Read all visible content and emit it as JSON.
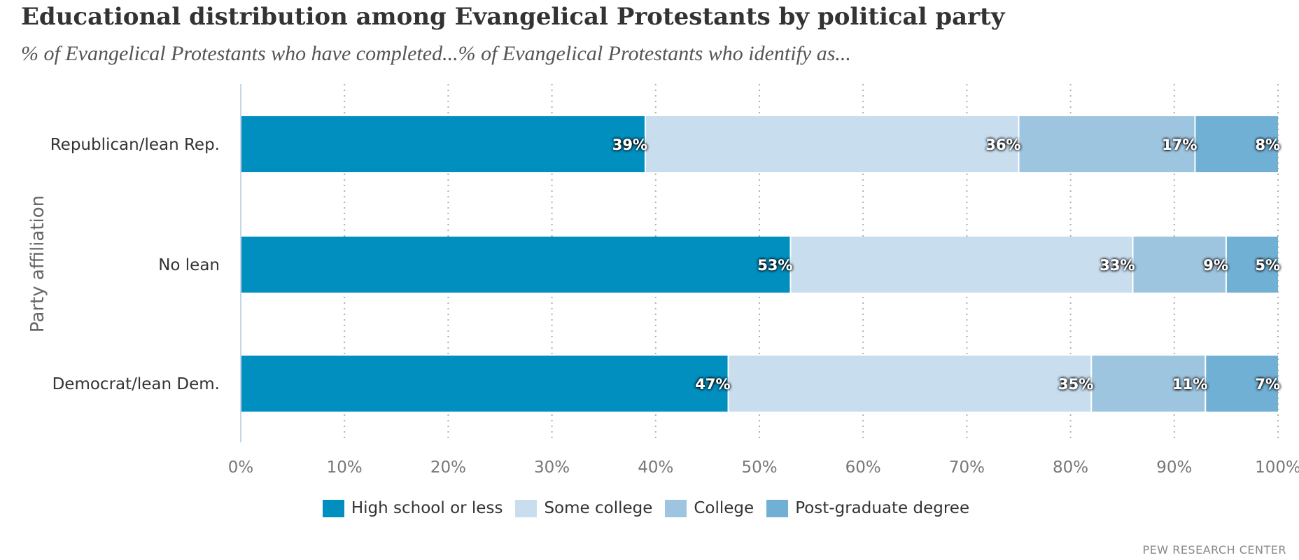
{
  "chart_data": {
    "type": "bar",
    "orientation": "horizontal",
    "stacked": true,
    "title": "Educational distribution among Evangelical Protestants by political party",
    "subtitle": "% of Evangelical Protestants who have completed...% of Evangelical Protestants who identify as...",
    "ylabel": "Party affiliation",
    "xlabel": "",
    "categories": [
      "Republican/lean Rep.",
      "No lean",
      "Democrat/lean Dem."
    ],
    "series": [
      {
        "name": "High school or less",
        "color": "#008fbf",
        "values": [
          39,
          53,
          47
        ]
      },
      {
        "name": "Some college",
        "color": "#c8ddee",
        "values": [
          36,
          33,
          35
        ]
      },
      {
        "name": "College",
        "color": "#9ec5df",
        "values": [
          17,
          9,
          11
        ]
      },
      {
        "name": "Post-graduate degree",
        "color": "#70b0d5",
        "values": [
          8,
          5,
          7
        ]
      }
    ],
    "data_label_suffix": "%",
    "xlim": [
      0,
      100
    ],
    "xticks": [
      0,
      10,
      20,
      30,
      40,
      50,
      60,
      70,
      80,
      90,
      100
    ],
    "xtick_labels": [
      "0%",
      "10%",
      "20%",
      "30%",
      "40%",
      "50%",
      "60%",
      "70%",
      "80%",
      "90%",
      "100%"
    ],
    "grid": "vertical dotted",
    "legend_position": "bottom-center"
  },
  "credit": "PEW RESEARCH CENTER"
}
